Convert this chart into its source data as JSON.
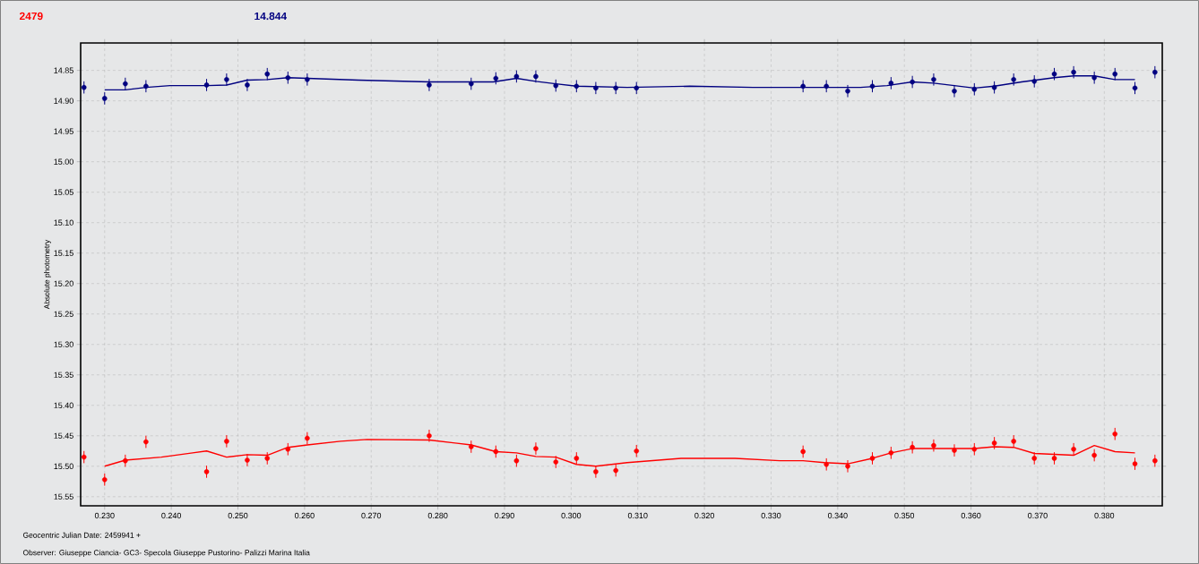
{
  "chart_data": {
    "type": "scatter",
    "xlabel": "Geocentric Julian Date: 2459941 +",
    "ylabel": "Absolute photometry",
    "annotations": [
      "2479",
      "14.844",
      "Observer: Giuseppe Ciancia- GC3- Specola Giuseppe Pustorino- Palizzi Marina Italia"
    ],
    "xlim": [
      0.2264,
      0.3887
    ],
    "ylim": [
      15.565,
      14.805
    ],
    "xticks": [
      {
        "value": 0.23,
        "label": "0.230"
      },
      {
        "value": 0.24,
        "label": "0.240"
      },
      {
        "value": 0.25,
        "label": "0.250"
      },
      {
        "value": 0.26,
        "label": "0.260"
      },
      {
        "value": 0.27,
        "label": "0.270"
      },
      {
        "value": 0.28,
        "label": "0.280"
      },
      {
        "value": 0.29,
        "label": "0.290"
      },
      {
        "value": 0.3,
        "label": "0.300"
      },
      {
        "value": 0.31,
        "label": "0.310"
      },
      {
        "value": 0.32,
        "label": "0.320"
      },
      {
        "value": 0.33,
        "label": "0.330"
      },
      {
        "value": 0.34,
        "label": "0.340"
      },
      {
        "value": 0.35,
        "label": "0.350"
      },
      {
        "value": 0.36,
        "label": "0.360"
      },
      {
        "value": 0.37,
        "label": "0.370"
      },
      {
        "value": 0.38,
        "label": "0.380"
      }
    ],
    "yticks": [
      14.85,
      {
        "value": 14.9,
        "label": "14.90"
      },
      14.95,
      {
        "value": 15.0,
        "label": "15.00"
      },
      15.05,
      {
        "value": 15.1,
        "label": "15.10"
      },
      15.15,
      {
        "value": 15.2,
        "label": "15.20"
      },
      15.25,
      {
        "value": 15.3,
        "label": "15.30"
      },
      15.35,
      {
        "value": 15.4,
        "label": "15.40"
      },
      15.45,
      {
        "value": 15.5,
        "label": "15.50"
      },
      15.55
    ],
    "grid": true,
    "series": [
      {
        "marker": "circle",
        "color": "#ff0000",
        "x": [
          0.2269,
          0.23,
          0.2331,
          0.2362,
          0.2453,
          0.2483,
          0.2514,
          0.2544,
          0.2575,
          0.2604,
          0.2787,
          0.285,
          0.2887,
          0.2918,
          0.2947,
          0.2977,
          0.3008,
          0.3037,
          0.3067,
          0.3098,
          0.3348,
          0.3383,
          0.3415,
          0.3452,
          0.348,
          0.3512,
          0.3544,
          0.3575,
          0.3605,
          0.3635,
          0.3664,
          0.3695,
          0.3725,
          0.3754,
          0.3785,
          0.3816,
          0.3846,
          0.3876
        ],
        "values": [
          15.485,
          15.522,
          15.491,
          15.46,
          15.509,
          15.459,
          15.49,
          15.487,
          15.472,
          15.454,
          15.45,
          15.468,
          15.476,
          15.491,
          15.471,
          15.493,
          15.487,
          15.509,
          15.507,
          15.475,
          15.476,
          15.497,
          15.5,
          15.487,
          15.478,
          15.469,
          15.466,
          15.474,
          15.472,
          15.462,
          15.459,
          15.487,
          15.487,
          15.472,
          15.482,
          15.447,
          15.496,
          15.491
        ],
        "errors": [
          0.01,
          0.01,
          0.01,
          0.01,
          0.01,
          0.01,
          0.01,
          0.01,
          0.01,
          0.01,
          0.01,
          0.01,
          0.01,
          0.01,
          0.01,
          0.01,
          0.01,
          0.01,
          0.01,
          0.01,
          0.01,
          0.01,
          0.01,
          0.01,
          0.01,
          0.01,
          0.01,
          0.01,
          0.01,
          0.01,
          0.01,
          0.01,
          0.01,
          0.01,
          0.01,
          0.01,
          0.01,
          0.01
        ]
      },
      {
        "marker": "circle",
        "color": "#000080",
        "x": [
          0.2269,
          0.23,
          0.2331,
          0.2362,
          0.2453,
          0.2483,
          0.2514,
          0.2544,
          0.2575,
          0.2604,
          0.2787,
          0.285,
          0.2887,
          0.2918,
          0.2947,
          0.2977,
          0.3008,
          0.3037,
          0.3067,
          0.3098,
          0.3348,
          0.3383,
          0.3415,
          0.3452,
          0.348,
          0.3512,
          0.3544,
          0.3575,
          0.3605,
          0.3635,
          0.3664,
          0.3695,
          0.3725,
          0.3754,
          0.3785,
          0.3816,
          0.3846,
          0.3876
        ],
        "values": [
          14.878,
          14.896,
          14.872,
          14.876,
          14.874,
          14.865,
          14.874,
          14.856,
          14.862,
          14.865,
          14.874,
          14.872,
          14.863,
          14.86,
          14.86,
          14.875,
          14.876,
          14.879,
          14.879,
          14.879,
          14.876,
          14.876,
          14.884,
          14.876,
          14.871,
          14.869,
          14.865,
          14.884,
          14.881,
          14.878,
          14.865,
          14.868,
          14.856,
          14.853,
          14.862,
          14.856,
          14.879,
          14.853
        ],
        "errors": [
          0.01,
          0.01,
          0.01,
          0.01,
          0.01,
          0.01,
          0.01,
          0.01,
          0.01,
          0.01,
          0.01,
          0.01,
          0.01,
          0.01,
          0.01,
          0.01,
          0.01,
          0.01,
          0.01,
          0.01,
          0.01,
          0.01,
          0.01,
          0.01,
          0.01,
          0.01,
          0.01,
          0.01,
          0.01,
          0.01,
          0.01,
          0.01,
          0.01,
          0.01,
          0.01,
          0.01,
          0.01,
          0.01
        ]
      },
      {
        "type": "line",
        "marker": "none",
        "color": "#ff0000",
        "x": [
          0.23,
          0.2331,
          0.2385,
          0.2432,
          0.2453,
          0.2483,
          0.2514,
          0.2544,
          0.2575,
          0.2604,
          0.2654,
          0.2694,
          0.2787,
          0.285,
          0.2887,
          0.2918,
          0.2947,
          0.2977,
          0.3008,
          0.3037,
          0.3084,
          0.3165,
          0.3246,
          0.3313,
          0.3348,
          0.338,
          0.3415,
          0.3452,
          0.348,
          0.3512,
          0.3544,
          0.3605,
          0.3635,
          0.3664,
          0.3695,
          0.3754,
          0.3785,
          0.3816,
          0.3846
        ],
        "values": [
          15.5,
          15.49,
          15.485,
          15.478,
          15.475,
          15.485,
          15.481,
          15.482,
          15.469,
          15.465,
          15.459,
          15.456,
          15.457,
          15.465,
          15.476,
          15.478,
          15.484,
          15.485,
          15.497,
          15.5,
          15.494,
          15.487,
          15.487,
          15.491,
          15.491,
          15.494,
          15.496,
          15.487,
          15.478,
          15.471,
          15.471,
          15.471,
          15.468,
          15.469,
          15.479,
          15.482,
          15.466,
          15.476,
          15.478
        ]
      },
      {
        "type": "line",
        "marker": "none",
        "color": "#000080",
        "x": [
          0.23,
          0.2331,
          0.2362,
          0.2398,
          0.2453,
          0.2483,
          0.2514,
          0.2544,
          0.2575,
          0.2604,
          0.2681,
          0.2788,
          0.2883,
          0.2918,
          0.2947,
          0.2977,
          0.3008,
          0.3084,
          0.3178,
          0.3273,
          0.3348,
          0.3434,
          0.3474,
          0.3512,
          0.3544,
          0.3575,
          0.3605,
          0.3635,
          0.3676,
          0.3725,
          0.3754,
          0.3785,
          0.3816,
          0.3846
        ],
        "values": [
          14.882,
          14.882,
          14.878,
          14.875,
          14.875,
          14.874,
          14.866,
          14.865,
          14.862,
          14.863,
          14.866,
          14.869,
          14.869,
          14.863,
          14.868,
          14.872,
          14.876,
          14.878,
          14.876,
          14.878,
          14.878,
          14.878,
          14.875,
          14.869,
          14.871,
          14.875,
          14.879,
          14.876,
          14.869,
          14.862,
          14.859,
          14.859,
          14.865,
          14.865
        ]
      }
    ]
  }
}
